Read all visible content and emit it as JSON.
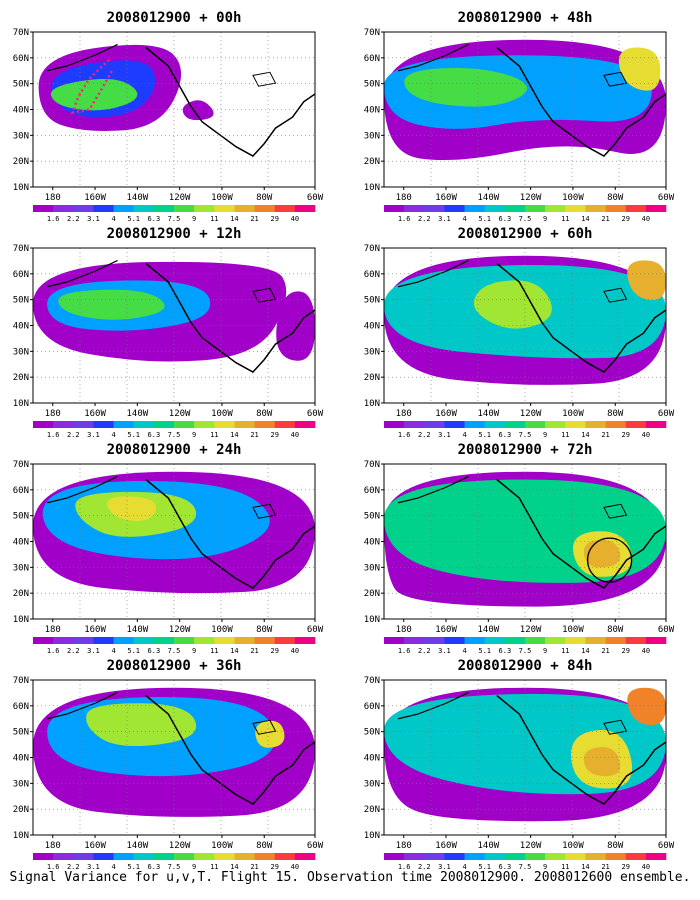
{
  "caption": "Signal Variance for u,v,T. Flight 15. Observation time 2008012900. 2008012600 ensemble.",
  "lat_labels": [
    "70N",
    "60N",
    "50N",
    "40N",
    "30N",
    "20N",
    "10N"
  ],
  "lon_labels": [
    "180",
    "160W",
    "140W",
    "120W",
    "100W",
    "80W",
    "60W"
  ],
  "colorbar": {
    "labels": [
      "1.6",
      "2.2",
      "3.1",
      "4",
      "5.1",
      "6.3",
      "7.5",
      "9",
      "11",
      "14",
      "21",
      "29",
      "40"
    ],
    "colors": [
      "#a000c8",
      "#8c2ce0",
      "#6e3ce8",
      "#1e3cff",
      "#00a0ff",
      "#00c8c8",
      "#00d28c",
      "#46dc46",
      "#a0e632",
      "#e6dc32",
      "#e6af2d",
      "#f08228",
      "#fa3c3c",
      "#f00082"
    ]
  },
  "panels": [
    {
      "id": "p00",
      "title": "2008012900 + 00h",
      "col": 0,
      "row": 0,
      "has_flight_track": true
    },
    {
      "id": "p48",
      "title": "2008012900 + 48h",
      "col": 1,
      "row": 0
    },
    {
      "id": "p12",
      "title": "2008012900 + 12h",
      "col": 0,
      "row": 1
    },
    {
      "id": "p60",
      "title": "2008012900 + 60h",
      "col": 1,
      "row": 1
    },
    {
      "id": "p24",
      "title": "2008012900 + 24h",
      "col": 0,
      "row": 2
    },
    {
      "id": "p72",
      "title": "2008012900 + 72h",
      "col": 1,
      "row": 2,
      "has_circle": true
    },
    {
      "id": "p36",
      "title": "2008012900 + 36h",
      "col": 0,
      "row": 3
    },
    {
      "id": "p84",
      "title": "2008012900 + 84h",
      "col": 1,
      "row": 3
    }
  ]
}
